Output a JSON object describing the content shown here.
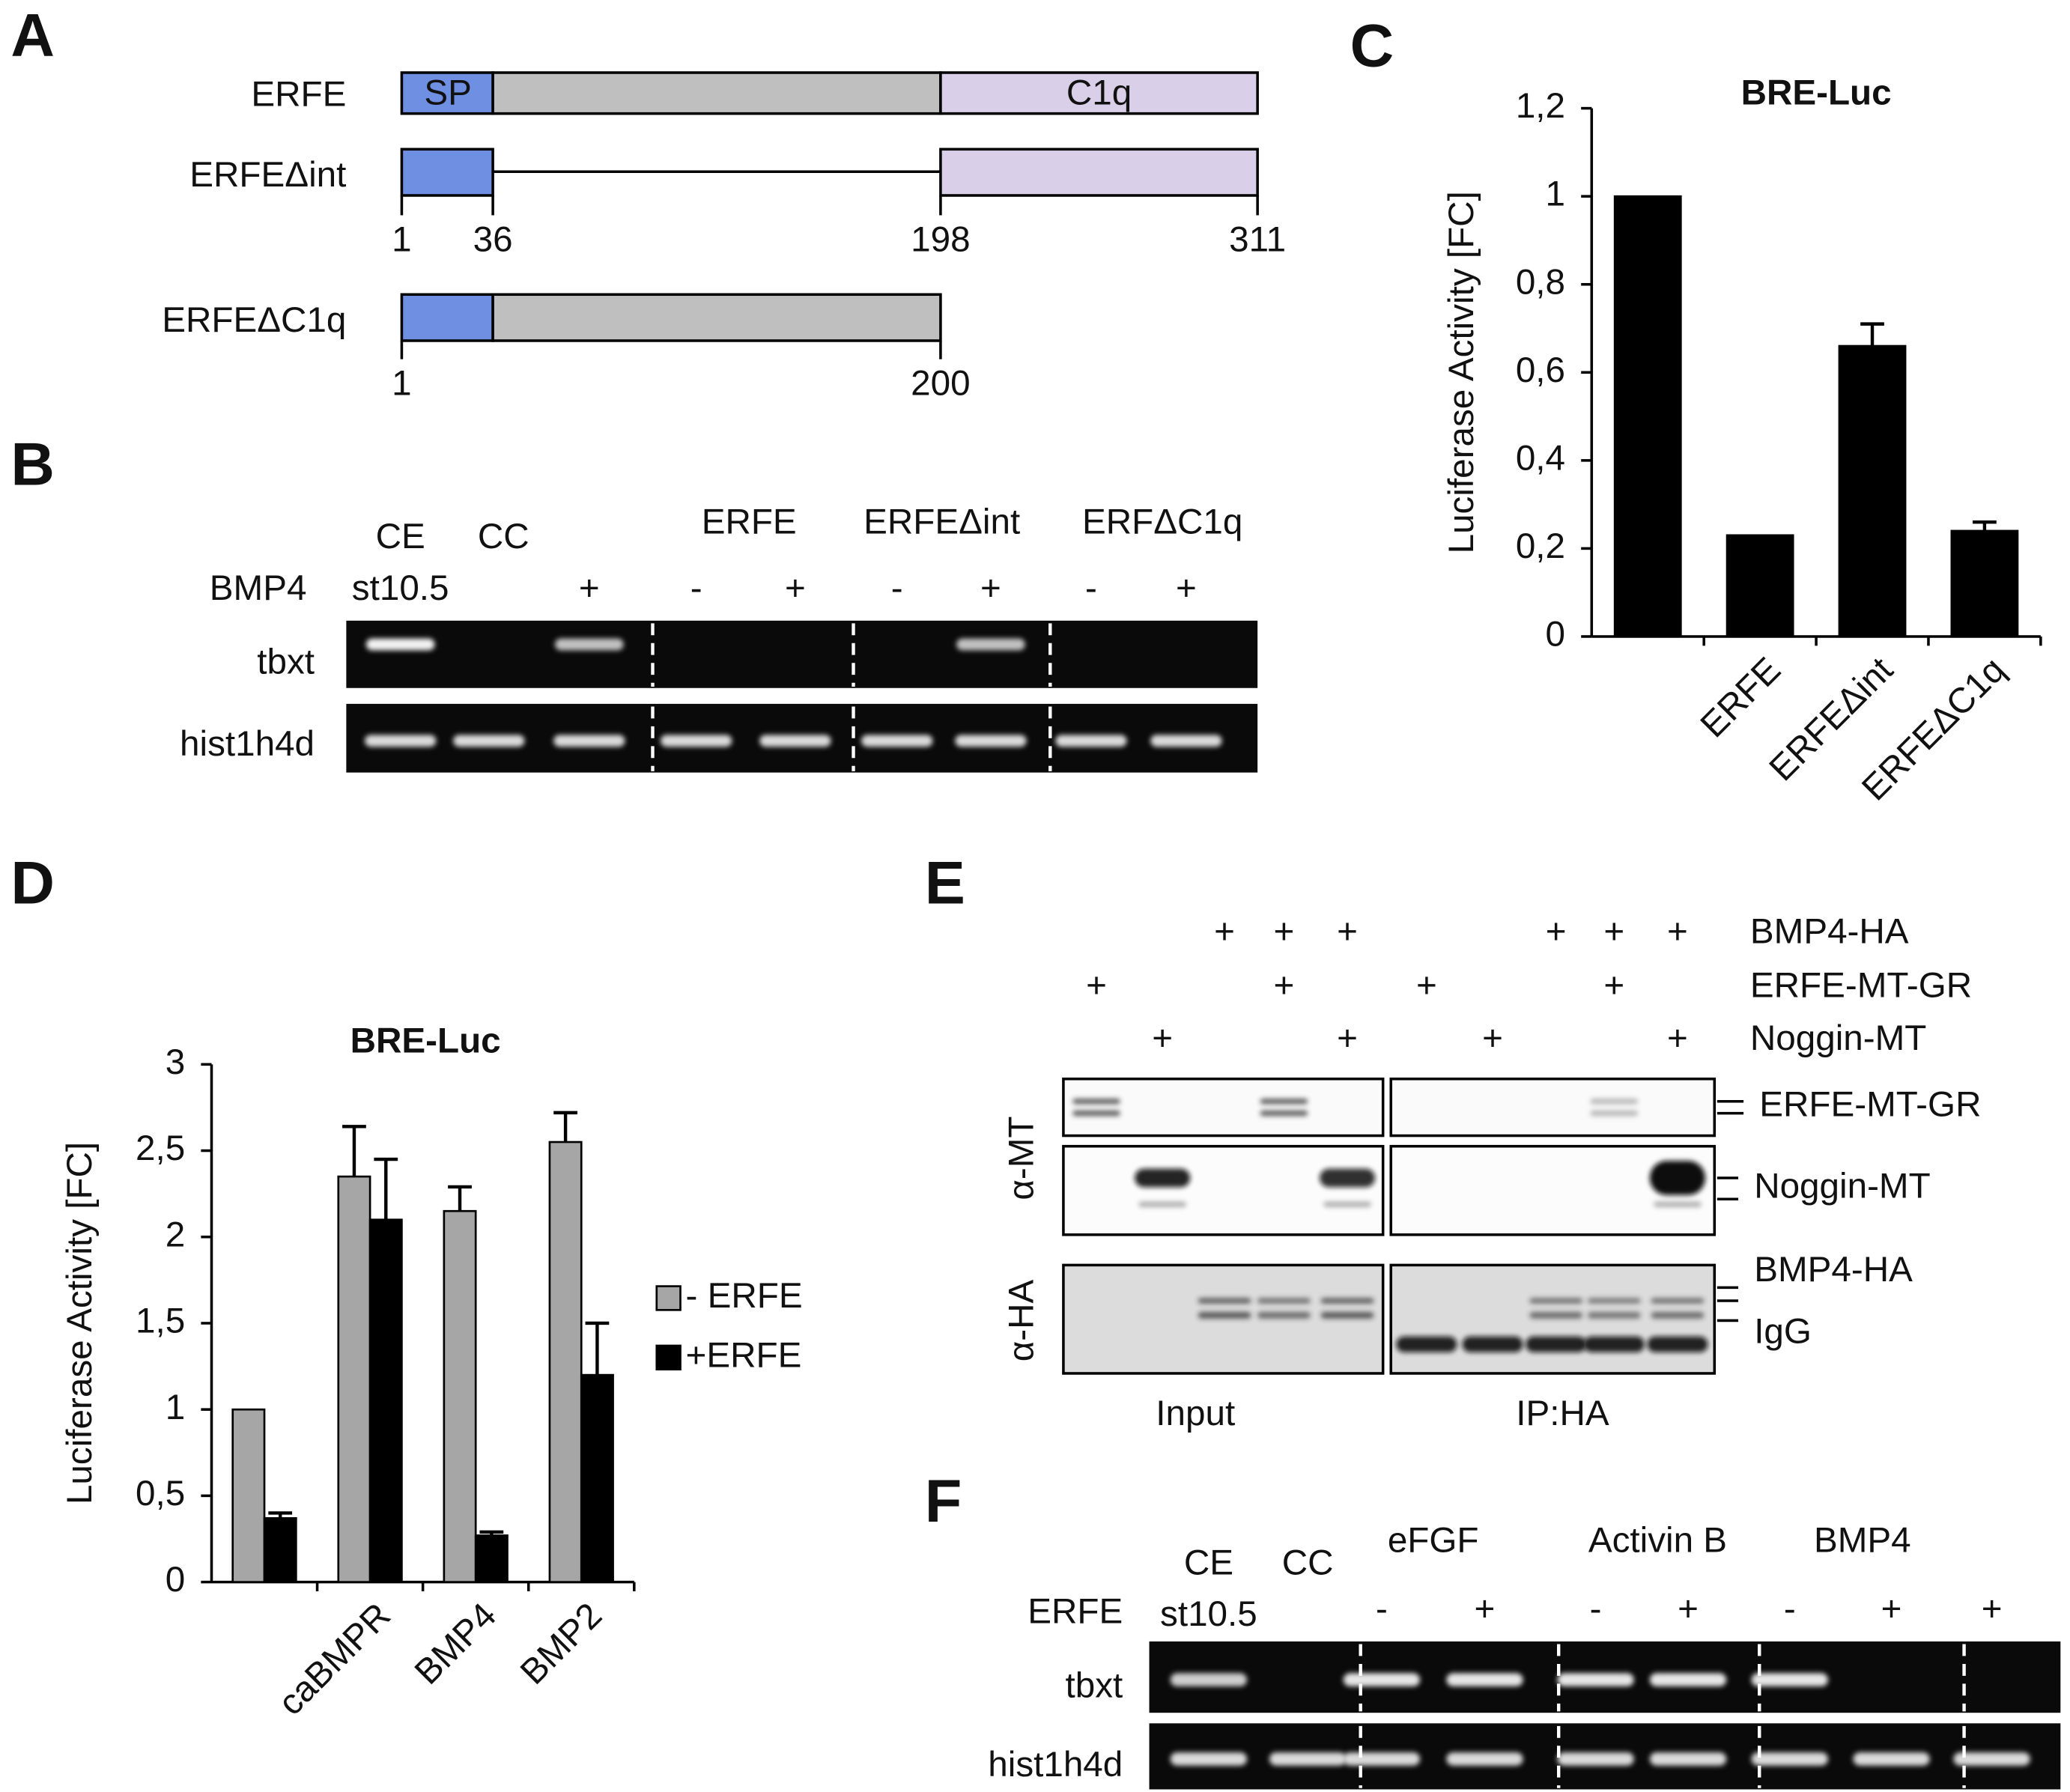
{
  "panel_letters": [
    "A",
    "B",
    "C",
    "D",
    "E",
    "F"
  ],
  "panel_a": {
    "constructs": [
      {
        "name": "ERFE",
        "domains": [
          "SP",
          "C1q"
        ]
      },
      {
        "name": "ERFEΔint"
      },
      {
        "name": "ERFEΔC1q"
      }
    ],
    "positions_int": [
      1,
      36,
      198,
      311
    ],
    "positions_c1q": [
      1,
      200
    ]
  },
  "panel_b": {
    "groups": [
      "CE",
      "CC",
      "ERFE",
      "ERFEΔint",
      "ERFΔC1q"
    ],
    "row_label": "BMP4",
    "stage": "st10.5",
    "treatments": [
      "+",
      "-",
      "+",
      "-",
      "+",
      "-",
      "+"
    ],
    "genes": [
      "tbxt",
      "hist1h4d"
    ]
  },
  "chart_data": [
    {
      "type": "bar",
      "title": "BRE-Luc",
      "y_label": "Luciferase Activity [FC]",
      "categories": [
        null,
        "ERFE",
        "ERFEΔint",
        "ERFEΔC1q"
      ],
      "values": [
        1,
        0.23,
        0.66,
        0.24
      ],
      "errors": [
        null,
        null,
        0.05,
        0.02
      ],
      "color": "#000000",
      "ylim": [
        0,
        1.2
      ],
      "yticks": [
        0,
        {
          "value": 0.2,
          "label": "0,2"
        },
        {
          "value": 0.4,
          "label": "0,4"
        },
        {
          "value": 0.6,
          "label": "0,6"
        },
        {
          "value": 0.8,
          "label": "0,8"
        },
        1,
        {
          "value": 1.2,
          "label": "1,2"
        }
      ]
    },
    {
      "type": "bar",
      "title": "BRE-Luc",
      "y_label": "Luciferase Activity [FC]",
      "categories": [
        null,
        "caBMPR",
        "BMP4",
        "BMP2"
      ],
      "series": [
        {
          "name": "- ERFE",
          "color": "#a6a6a6",
          "values": [
            1,
            2.35,
            2.15,
            2.55
          ],
          "errors": [
            null,
            0.29,
            0.14,
            0.17
          ]
        },
        {
          "name": "+ERFE",
          "color": "#000000",
          "values": [
            0.37,
            2.1,
            0.27,
            1.2
          ],
          "errors": [
            0.03,
            0.35,
            0.02,
            0.3
          ]
        }
      ],
      "ylim": [
        0,
        3
      ],
      "yticks": [
        0,
        {
          "value": 0.5,
          "label": "0,5"
        },
        1,
        {
          "value": 1.5,
          "label": "1,5"
        },
        2,
        {
          "value": 2.5,
          "label": "2,5"
        },
        3
      ],
      "legend": "right"
    }
  ],
  "panel_e": {
    "rows": [
      {
        "label": "BMP4-HA",
        "marks": [
          null,
          null,
          "+",
          "+",
          "+",
          null,
          null,
          "+",
          "+",
          "+"
        ]
      },
      {
        "label": "ERFE-MT-GR",
        "marks": [
          "+",
          null,
          null,
          "+",
          null,
          "+",
          null,
          null,
          "+",
          null
        ]
      },
      {
        "label": "Noggin-MT",
        "marks": [
          null,
          "+",
          null,
          null,
          "+",
          null,
          "+",
          null,
          null,
          "+"
        ]
      }
    ],
    "antibodies": [
      "α-MT",
      "α-HA"
    ],
    "bands": [
      "ERFE-MT-GR",
      "Noggin-MT",
      "BMP4-HA",
      "IgG"
    ],
    "groups": [
      "Input",
      "IP:HA"
    ]
  },
  "panel_f": {
    "groups": [
      "CE",
      "CC",
      "eFGF",
      "Activin B",
      "BMP4"
    ],
    "row_label": "ERFE",
    "stage": "st10.5",
    "treatments": [
      "-",
      "+",
      "-",
      "+",
      "-",
      "+",
      "+"
    ],
    "genes": [
      "tbxt",
      "hist1h4d"
    ]
  }
}
